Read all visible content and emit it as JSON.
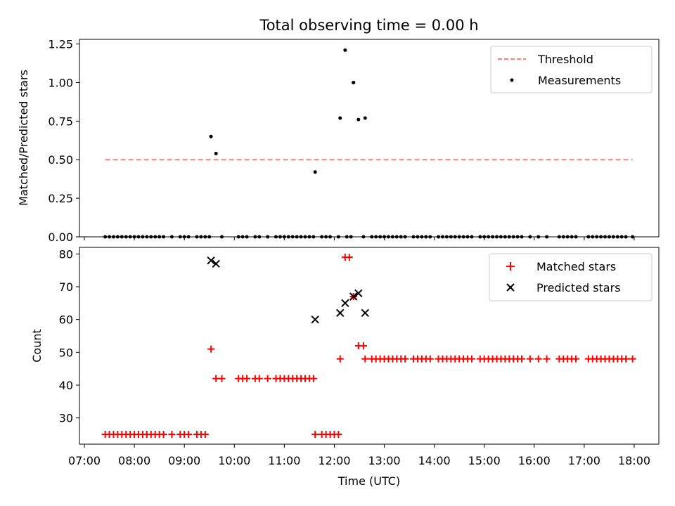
{
  "chart_data": [
    {
      "type": "scatter",
      "title": "Total observing time = 0.00 h",
      "xlabel": "",
      "ylabel": "Matched/Predicted stars",
      "ylim": [
        0,
        1.28
      ],
      "yticks": [
        "0.00",
        "0.25",
        "0.50",
        "0.75",
        "1.00",
        "1.25"
      ],
      "legend_position": "top-right",
      "threshold": {
        "name": "Threshold",
        "value": 0.5,
        "x_start": "07:25",
        "x_end": "17:58",
        "color": "#ff7f7f",
        "style": "dashed"
      },
      "series": [
        {
          "name": "Measurements",
          "color": "#000000",
          "x": [
            "09:32",
            "09:38",
            "11:37",
            "12:07",
            "12:13",
            "12:23",
            "12:29",
            "12:37",
            "12:23"
          ],
          "y": [
            0.65,
            0.54,
            0.42,
            0.77,
            1.21,
            1.0,
            0.76,
            0.77,
            1.0
          ]
        }
      ],
      "zero_x": [
        "07:25",
        "07:30",
        "07:35",
        "07:40",
        "07:45",
        "07:50",
        "07:55",
        "08:00",
        "08:05",
        "08:10",
        "08:15",
        "08:20",
        "08:25",
        "08:30",
        "08:35",
        "08:45",
        "08:55",
        "09:00",
        "09:05",
        "09:15",
        "09:20",
        "09:25",
        "09:30",
        "09:45",
        "10:05",
        "10:10",
        "10:15",
        "10:25",
        "10:30",
        "10:40",
        "10:50",
        "10:55",
        "11:00",
        "11:05",
        "11:10",
        "11:15",
        "11:20",
        "11:25",
        "11:30",
        "11:35",
        "11:45",
        "11:50",
        "11:55",
        "12:05",
        "12:15",
        "12:20",
        "12:35",
        "12:45",
        "12:50",
        "12:55",
        "13:00",
        "13:05",
        "13:10",
        "13:15",
        "13:20",
        "13:25",
        "13:35",
        "13:40",
        "13:45",
        "13:50",
        "13:55",
        "14:05",
        "14:10",
        "14:15",
        "14:20",
        "14:25",
        "14:30",
        "14:35",
        "14:40",
        "14:45",
        "14:55",
        "15:00",
        "15:05",
        "15:10",
        "15:15",
        "15:20",
        "15:25",
        "15:30",
        "15:35",
        "15:40",
        "15:45",
        "15:55",
        "16:05",
        "16:15",
        "16:30",
        "16:35",
        "16:40",
        "16:45",
        "16:50",
        "17:05",
        "17:10",
        "17:15",
        "17:20",
        "17:25",
        "17:30",
        "17:35",
        "17:40",
        "17:45",
        "17:50",
        "17:58"
      ]
    },
    {
      "type": "scatter",
      "title": "",
      "xlabel": "Time (UTC)",
      "ylabel": "Count",
      "ylim": [
        22,
        82
      ],
      "yticks": [
        "30",
        "40",
        "50",
        "60",
        "70",
        "80"
      ],
      "xticks": [
        "07:00",
        "08:00",
        "09:00",
        "10:00",
        "11:00",
        "12:00",
        "13:00",
        "14:00",
        "15:00",
        "16:00",
        "17:00",
        "18:00"
      ],
      "legend_position": "top-right",
      "series": [
        {
          "name": "Matched stars",
          "color": "#ff0000",
          "marker": "plus",
          "points": [
            [
              "07:25",
              25
            ],
            [
              "07:30",
              25
            ],
            [
              "07:35",
              25
            ],
            [
              "07:40",
              25
            ],
            [
              "07:45",
              25
            ],
            [
              "07:50",
              25
            ],
            [
              "07:55",
              25
            ],
            [
              "08:00",
              25
            ],
            [
              "08:05",
              25
            ],
            [
              "08:10",
              25
            ],
            [
              "08:15",
              25
            ],
            [
              "08:20",
              25
            ],
            [
              "08:25",
              25
            ],
            [
              "08:30",
              25
            ],
            [
              "08:35",
              25
            ],
            [
              "08:45",
              25
            ],
            [
              "08:55",
              25
            ],
            [
              "09:00",
              25
            ],
            [
              "09:05",
              25
            ],
            [
              "09:15",
              25
            ],
            [
              "09:20",
              25
            ],
            [
              "09:25",
              25
            ],
            [
              "09:32",
              51
            ],
            [
              "09:38",
              42
            ],
            [
              "09:45",
              42
            ],
            [
              "10:05",
              42
            ],
            [
              "10:10",
              42
            ],
            [
              "10:15",
              42
            ],
            [
              "10:25",
              42
            ],
            [
              "10:30",
              42
            ],
            [
              "10:40",
              42
            ],
            [
              "10:50",
              42
            ],
            [
              "10:55",
              42
            ],
            [
              "11:00",
              42
            ],
            [
              "11:05",
              42
            ],
            [
              "11:10",
              42
            ],
            [
              "11:15",
              42
            ],
            [
              "11:20",
              42
            ],
            [
              "11:25",
              42
            ],
            [
              "11:30",
              42
            ],
            [
              "11:35",
              42
            ],
            [
              "11:37",
              25
            ],
            [
              "11:45",
              25
            ],
            [
              "11:50",
              25
            ],
            [
              "11:55",
              25
            ],
            [
              "12:00",
              25
            ],
            [
              "12:05",
              25
            ],
            [
              "12:07",
              48
            ],
            [
              "12:13",
              79
            ],
            [
              "12:18",
              79
            ],
            [
              "12:23",
              67
            ],
            [
              "12:29",
              52
            ],
            [
              "12:35",
              52
            ],
            [
              "12:37",
              48
            ],
            [
              "12:45",
              48
            ],
            [
              "12:50",
              48
            ],
            [
              "12:55",
              48
            ],
            [
              "13:00",
              48
            ],
            [
              "13:05",
              48
            ],
            [
              "13:10",
              48
            ],
            [
              "13:15",
              48
            ],
            [
              "13:20",
              48
            ],
            [
              "13:25",
              48
            ],
            [
              "13:35",
              48
            ],
            [
              "13:40",
              48
            ],
            [
              "13:45",
              48
            ],
            [
              "13:50",
              48
            ],
            [
              "13:55",
              48
            ],
            [
              "14:05",
              48
            ],
            [
              "14:10",
              48
            ],
            [
              "14:15",
              48
            ],
            [
              "14:20",
              48
            ],
            [
              "14:25",
              48
            ],
            [
              "14:30",
              48
            ],
            [
              "14:35",
              48
            ],
            [
              "14:40",
              48
            ],
            [
              "14:45",
              48
            ],
            [
              "14:55",
              48
            ],
            [
              "15:00",
              48
            ],
            [
              "15:05",
              48
            ],
            [
              "15:10",
              48
            ],
            [
              "15:15",
              48
            ],
            [
              "15:20",
              48
            ],
            [
              "15:25",
              48
            ],
            [
              "15:30",
              48
            ],
            [
              "15:35",
              48
            ],
            [
              "15:40",
              48
            ],
            [
              "15:45",
              48
            ],
            [
              "15:55",
              48
            ],
            [
              "16:05",
              48
            ],
            [
              "16:15",
              48
            ],
            [
              "16:30",
              48
            ],
            [
              "16:35",
              48
            ],
            [
              "16:40",
              48
            ],
            [
              "16:45",
              48
            ],
            [
              "16:50",
              48
            ],
            [
              "17:05",
              48
            ],
            [
              "17:10",
              48
            ],
            [
              "17:15",
              48
            ],
            [
              "17:20",
              48
            ],
            [
              "17:25",
              48
            ],
            [
              "17:30",
              48
            ],
            [
              "17:35",
              48
            ],
            [
              "17:40",
              48
            ],
            [
              "17:45",
              48
            ],
            [
              "17:50",
              48
            ],
            [
              "17:58",
              48
            ]
          ]
        },
        {
          "name": "Predicted stars",
          "color": "#000000",
          "marker": "x",
          "points": [
            [
              "09:32",
              78
            ],
            [
              "09:38",
              77
            ],
            [
              "11:37",
              60
            ],
            [
              "12:07",
              62
            ],
            [
              "12:13",
              65
            ],
            [
              "12:23",
              67
            ],
            [
              "12:29",
              68
            ],
            [
              "12:37",
              62
            ]
          ]
        }
      ]
    }
  ]
}
